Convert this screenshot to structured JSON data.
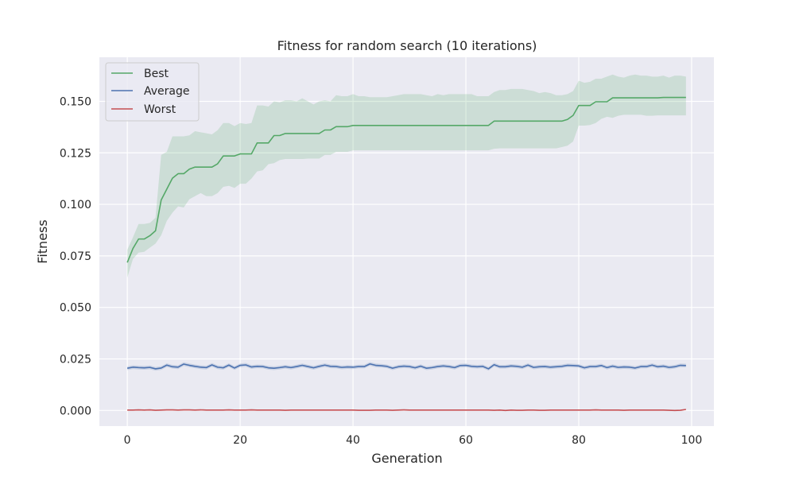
{
  "chart_data": {
    "type": "line",
    "title": "Fitness for random search (10 iterations)",
    "xlabel": "Generation",
    "ylabel": "Fitness",
    "xlim": [
      -4.95,
      103.95
    ],
    "ylim": [
      -0.0076,
      0.1714
    ],
    "xticks": [
      0,
      20,
      40,
      60,
      80,
      100
    ],
    "yticks": [
      0.0,
      0.025,
      0.05,
      0.075,
      0.1,
      0.125,
      0.15
    ],
    "ytick_labels": [
      "0.000",
      "0.025",
      "0.050",
      "0.075",
      "0.100",
      "0.125",
      "0.150"
    ],
    "grid": true,
    "legend_position": "top-left",
    "x": [
      0,
      1,
      2,
      3,
      4,
      5,
      6,
      7,
      8,
      9,
      10,
      11,
      12,
      13,
      14,
      15,
      16,
      17,
      18,
      19,
      20,
      21,
      22,
      23,
      24,
      25,
      26,
      27,
      28,
      29,
      30,
      31,
      32,
      33,
      34,
      35,
      36,
      37,
      38,
      39,
      40,
      41,
      42,
      43,
      44,
      45,
      46,
      47,
      48,
      49,
      50,
      51,
      52,
      53,
      54,
      55,
      56,
      57,
      58,
      59,
      60,
      61,
      62,
      63,
      64,
      65,
      66,
      67,
      68,
      69,
      70,
      71,
      72,
      73,
      74,
      75,
      76,
      77,
      78,
      79,
      80,
      81,
      82,
      83,
      84,
      85,
      86,
      87,
      88,
      89,
      90,
      91,
      92,
      93,
      94,
      95,
      96,
      97,
      98,
      99
    ],
    "series": [
      {
        "name": "Best",
        "color": "#55a868",
        "values": [
          0.0718,
          0.0786,
          0.0832,
          0.0832,
          0.0848,
          0.0872,
          0.1021,
          0.1074,
          0.1127,
          0.1149,
          0.1149,
          0.1171,
          0.1181,
          0.1181,
          0.1181,
          0.1181,
          0.1197,
          0.1235,
          0.1235,
          0.1235,
          0.1245,
          0.1245,
          0.1245,
          0.1298,
          0.1298,
          0.1298,
          0.1334,
          0.1334,
          0.1344,
          0.1344,
          0.1344,
          0.1344,
          0.1344,
          0.1344,
          0.1344,
          0.1361,
          0.1361,
          0.1377,
          0.1377,
          0.1377,
          0.1383,
          0.1383,
          0.1383,
          0.1383,
          0.1383,
          0.1383,
          0.1383,
          0.1383,
          0.1383,
          0.1383,
          0.1383,
          0.1383,
          0.1383,
          0.1383,
          0.1383,
          0.1383,
          0.1383,
          0.1383,
          0.1383,
          0.1383,
          0.1383,
          0.1383,
          0.1383,
          0.1383,
          0.1383,
          0.1404,
          0.1404,
          0.1404,
          0.1404,
          0.1404,
          0.1404,
          0.1404,
          0.1404,
          0.1404,
          0.1404,
          0.1404,
          0.1404,
          0.1404,
          0.1412,
          0.1432,
          0.148,
          0.148,
          0.148,
          0.1498,
          0.1498,
          0.1498,
          0.1517,
          0.1517,
          0.1517,
          0.1517,
          0.1517,
          0.1517,
          0.1517,
          0.1517,
          0.1517,
          0.1519,
          0.1519,
          0.1519,
          0.1519,
          0.1519
        ],
        "lower": [
          0.0645,
          0.0735,
          0.0766,
          0.077,
          0.079,
          0.081,
          0.085,
          0.092,
          0.096,
          0.099,
          0.0985,
          0.1025,
          0.104,
          0.1055,
          0.104,
          0.104,
          0.1055,
          0.1085,
          0.109,
          0.108,
          0.11,
          0.11,
          0.1125,
          0.116,
          0.1165,
          0.1195,
          0.12,
          0.1215,
          0.122,
          0.122,
          0.122,
          0.122,
          0.1222,
          0.1222,
          0.1222,
          0.124,
          0.124,
          0.1255,
          0.1255,
          0.1255,
          0.1262,
          0.1262,
          0.1262,
          0.1262,
          0.1262,
          0.1262,
          0.1262,
          0.1262,
          0.1262,
          0.1262,
          0.1262,
          0.1262,
          0.1262,
          0.1262,
          0.1262,
          0.1262,
          0.1262,
          0.1262,
          0.1262,
          0.1262,
          0.1262,
          0.1262,
          0.1262,
          0.1262,
          0.1262,
          0.127,
          0.1272,
          0.1272,
          0.1272,
          0.1272,
          0.1272,
          0.1272,
          0.1272,
          0.1272,
          0.1272,
          0.1272,
          0.1272,
          0.1278,
          0.1285,
          0.1305,
          0.1382,
          0.1382,
          0.1385,
          0.1395,
          0.1415,
          0.1425,
          0.142,
          0.143,
          0.1435,
          0.1435,
          0.1435,
          0.1435,
          0.143,
          0.143,
          0.1432,
          0.1432,
          0.1432,
          0.1432,
          0.1432,
          0.1432
        ],
        "upper": [
          0.078,
          0.084,
          0.0905,
          0.0905,
          0.091,
          0.0935,
          0.124,
          0.1255,
          0.133,
          0.133,
          0.133,
          0.1335,
          0.1355,
          0.135,
          0.1345,
          0.134,
          0.136,
          0.1395,
          0.1395,
          0.138,
          0.1395,
          0.139,
          0.1395,
          0.148,
          0.148,
          0.1475,
          0.15,
          0.1495,
          0.1505,
          0.1505,
          0.15,
          0.1515,
          0.15,
          0.1485,
          0.15,
          0.1505,
          0.15,
          0.153,
          0.1525,
          0.1525,
          0.1535,
          0.1525,
          0.1525,
          0.152,
          0.152,
          0.152,
          0.152,
          0.1525,
          0.153,
          0.1535,
          0.1535,
          0.1535,
          0.1535,
          0.153,
          0.1525,
          0.1535,
          0.153,
          0.1535,
          0.1535,
          0.1535,
          0.1535,
          0.1535,
          0.1525,
          0.1525,
          0.1525,
          0.1545,
          0.1555,
          0.1555,
          0.156,
          0.156,
          0.156,
          0.1555,
          0.155,
          0.154,
          0.1545,
          0.154,
          0.153,
          0.153,
          0.1535,
          0.155,
          0.16,
          0.159,
          0.1595,
          0.161,
          0.161,
          0.162,
          0.163,
          0.162,
          0.1615,
          0.1625,
          0.163,
          0.1625,
          0.1625,
          0.162,
          0.162,
          0.1625,
          0.1615,
          0.1625,
          0.1625,
          0.162
        ],
        "band_color": "#55a868"
      },
      {
        "name": "Average",
        "color": "#4c72b0",
        "values": [
          0.0205,
          0.021,
          0.0208,
          0.0207,
          0.0209,
          0.0202,
          0.0206,
          0.022,
          0.0212,
          0.021,
          0.0225,
          0.0219,
          0.0214,
          0.021,
          0.0208,
          0.0221,
          0.021,
          0.0207,
          0.022,
          0.0206,
          0.0219,
          0.0221,
          0.0211,
          0.0214,
          0.0213,
          0.0207,
          0.0205,
          0.0208,
          0.0212,
          0.0208,
          0.0213,
          0.0219,
          0.0213,
          0.0207,
          0.0214,
          0.022,
          0.0214,
          0.0213,
          0.0209,
          0.0211,
          0.021,
          0.0213,
          0.0213,
          0.0226,
          0.0219,
          0.0217,
          0.0214,
          0.0205,
          0.0212,
          0.0215,
          0.0213,
          0.0207,
          0.0215,
          0.0205,
          0.0208,
          0.0213,
          0.0216,
          0.0213,
          0.0208,
          0.0218,
          0.0219,
          0.0214,
          0.0212,
          0.0214,
          0.0202,
          0.0222,
          0.0212,
          0.0212,
          0.0216,
          0.0214,
          0.021,
          0.022,
          0.0209,
          0.0212,
          0.0213,
          0.021,
          0.0212,
          0.0214,
          0.0219,
          0.0218,
          0.0216,
          0.0207,
          0.0213,
          0.0213,
          0.0218,
          0.0208,
          0.0215,
          0.0209,
          0.0211,
          0.021,
          0.0206,
          0.0213,
          0.0213,
          0.022,
          0.0212,
          0.0215,
          0.0209,
          0.0212,
          0.0219,
          0.0218
        ],
        "band": 0.0009
      },
      {
        "name": "Worst",
        "color": "#c44e52",
        "values": [
          0.0002,
          0.0002,
          0.0003,
          0.0002,
          0.0003,
          0.0001,
          0.0002,
          0.0003,
          0.0003,
          0.0002,
          0.0003,
          0.0003,
          0.0002,
          0.0003,
          0.0002,
          0.0002,
          0.0002,
          0.0002,
          0.0003,
          0.0002,
          0.0002,
          0.0002,
          0.0003,
          0.0002,
          0.0002,
          0.0002,
          0.0002,
          0.0002,
          0.0001,
          0.0002,
          0.0002,
          0.0002,
          0.0002,
          0.0002,
          0.0002,
          0.0002,
          0.0002,
          0.0002,
          0.0002,
          0.0002,
          0.0002,
          0.0001,
          0.0001,
          0.0001,
          0.0002,
          0.0002,
          0.0002,
          0.0001,
          0.0002,
          0.0003,
          0.0002,
          0.0002,
          0.0002,
          0.0002,
          0.0002,
          0.0002,
          0.0002,
          0.0002,
          0.0002,
          0.0002,
          0.0002,
          0.0002,
          0.0002,
          0.0002,
          0.0002,
          0.0001,
          0.0002,
          0.0,
          0.0002,
          0.0001,
          0.0001,
          0.0002,
          0.0002,
          0.0001,
          0.0001,
          0.0002,
          0.0002,
          0.0002,
          0.0002,
          0.0002,
          0.0002,
          0.0002,
          0.0002,
          0.0003,
          0.0002,
          0.0002,
          0.0002,
          0.0002,
          0.0001,
          0.0002,
          0.0002,
          0.0002,
          0.0002,
          0.0002,
          0.0002,
          0.0002,
          0.0001,
          0.0,
          0.0001,
          0.0005
        ],
        "band": 0.0002
      }
    ]
  }
}
